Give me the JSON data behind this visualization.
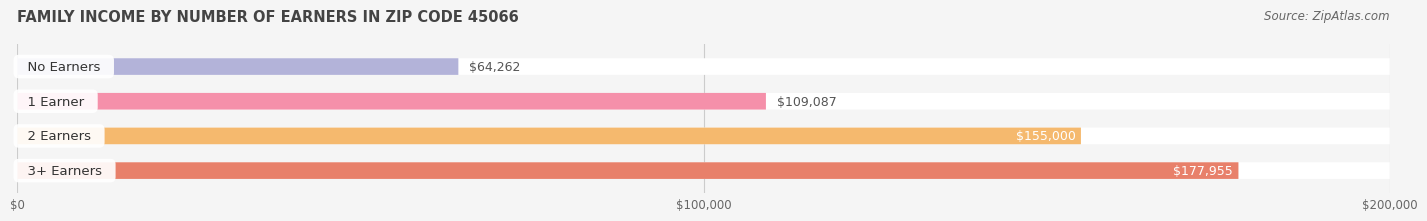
{
  "title": "FAMILY INCOME BY NUMBER OF EARNERS IN ZIP CODE 45066",
  "source": "Source: ZipAtlas.com",
  "categories": [
    "No Earners",
    "1 Earner",
    "2 Earners",
    "3+ Earners"
  ],
  "values": [
    64262,
    109087,
    155000,
    177955
  ],
  "bar_colors": [
    "#b3b3d9",
    "#f590aa",
    "#f5b96e",
    "#e8806a"
  ],
  "value_label_colors": [
    "#555555",
    "#555555",
    "#ffffff",
    "#ffffff"
  ],
  "xlim": [
    0,
    200000
  ],
  "xticks": [
    0,
    100000,
    200000
  ],
  "xtick_labels": [
    "$0",
    "$100,000",
    "$200,000"
  ],
  "background_color": "#f5f5f5",
  "bar_bg_color": "#e8e8e8",
  "title_fontsize": 10.5,
  "source_fontsize": 8.5,
  "label_fontsize": 9.5,
  "value_fontsize": 9,
  "bar_height": 0.48,
  "bar_spacing": 1.0
}
